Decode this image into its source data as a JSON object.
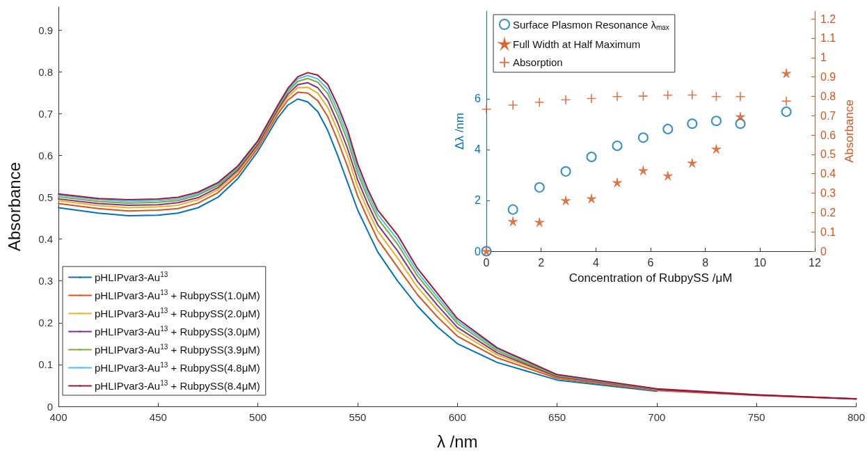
{
  "chart_data": [
    {
      "type": "line",
      "xlabel": "λ /nm",
      "ylabel": "Absorbance",
      "x": [
        400,
        420,
        435,
        450,
        460,
        470,
        480,
        490,
        500,
        510,
        515,
        520,
        525,
        530,
        535,
        540,
        545,
        550,
        555,
        560,
        570,
        580,
        590,
        600,
        620,
        650,
        700,
        750,
        800
      ],
      "series": [
        {
          "name": "pHLIPvar3-Au$^{13}$",
          "color": "#0072bd",
          "values": [
            0.475,
            0.462,
            0.456,
            0.457,
            0.462,
            0.475,
            0.5,
            0.545,
            0.61,
            0.69,
            0.72,
            0.735,
            0.728,
            0.705,
            0.66,
            0.6,
            0.535,
            0.47,
            0.42,
            0.37,
            0.3,
            0.24,
            0.19,
            0.15,
            0.105,
            0.063,
            0.036,
            null,
            null
          ]
        },
        {
          "name": "pHLIPvar3-Au$^{13}$ + RubpySS(1.0μM)",
          "color": "#d95319",
          "values": [
            0.485,
            0.473,
            0.467,
            0.469,
            0.473,
            0.486,
            0.511,
            0.554,
            0.618,
            0.699,
            0.732,
            0.751,
            0.749,
            0.731,
            0.693,
            0.636,
            0.573,
            0.503,
            0.45,
            0.4,
            0.333,
            0.267,
            0.214,
            0.168,
            0.116,
            0.067,
            0.038,
            0.026,
            0.018
          ]
        },
        {
          "name": "pHLIPvar3-Au$^{13}$ + RubpySS(2.0μM)",
          "color": "#edb120",
          "values": [
            0.492,
            0.48,
            0.475,
            0.477,
            0.481,
            0.494,
            0.518,
            0.56,
            0.623,
            0.705,
            0.74,
            0.762,
            0.763,
            0.749,
            0.715,
            0.66,
            0.598,
            0.525,
            0.47,
            0.42,
            0.355,
            0.285,
            0.23,
            0.18,
            0.123,
            0.07,
            0.039,
            0.027,
            0.018
          ]
        },
        {
          "name": "pHLIPvar3-Au$^{13}$ + RubpySS(3.0μM)",
          "color": "#7e2f8e",
          "values": [
            0.496,
            0.485,
            0.481,
            0.482,
            0.487,
            0.499,
            0.523,
            0.565,
            0.626,
            0.71,
            0.746,
            0.769,
            0.774,
            0.762,
            0.732,
            0.678,
            0.616,
            0.542,
            0.485,
            0.435,
            0.372,
            0.299,
            0.242,
            0.189,
            0.128,
            0.071,
            0.04,
            0.027,
            0.018
          ]
        },
        {
          "name": "pHLIPvar3-Au$^{13}$ + RubpySS(3.9μM)",
          "color": "#77ac30",
          "values": [
            0.501,
            0.49,
            0.486,
            0.488,
            0.492,
            0.505,
            0.528,
            0.569,
            0.63,
            0.714,
            0.752,
            0.777,
            0.784,
            0.775,
            0.748,
            0.696,
            0.635,
            0.558,
            0.5,
            0.45,
            0.388,
            0.312,
            0.254,
            0.198,
            0.133,
            0.073,
            0.041,
            null,
            null
          ]
        },
        {
          "name": "pHLIPvar3-Au$^{13}$ + RubpySS(4.8μM)",
          "color": "#4dbeee",
          "values": [
            0.505,
            0.494,
            0.49,
            0.492,
            0.496,
            0.508,
            0.532,
            0.572,
            0.633,
            0.717,
            0.756,
            0.783,
            0.791,
            0.783,
            0.759,
            0.708,
            0.648,
            0.569,
            0.51,
            0.46,
            0.399,
            0.321,
            0.262,
            0.204,
            0.137,
            0.075,
            0.041,
            null,
            null
          ]
        },
        {
          "name": "pHLIPvar3-Au$^{13}$ + RubpySS(8.4μM)",
          "color": "#a2142f",
          "values": [
            0.508,
            0.497,
            0.494,
            0.496,
            0.5,
            0.512,
            0.535,
            0.575,
            0.635,
            0.72,
            0.76,
            0.788,
            0.798,
            0.792,
            0.77,
            0.72,
            0.66,
            0.58,
            0.52,
            0.47,
            0.41,
            0.33,
            0.27,
            0.21,
            0.14,
            0.076,
            0.042,
            0.028,
            0.018
          ]
        }
      ],
      "xlim": [
        400,
        800
      ],
      "xticks": [
        400,
        450,
        500,
        550,
        600,
        650,
        700,
        750,
        800
      ],
      "ylim": [
        0,
        0.955
      ],
      "yticks": [
        0,
        0.1,
        0.2,
        0.3,
        0.4,
        0.5,
        0.6,
        0.7,
        0.8,
        0.9
      ],
      "legend": "bottom left",
      "grid": false,
      "marker": "none",
      "line_style": "solid"
    },
    {
      "type": "scatter",
      "xlabel": "Concentration of RubpySS /μM",
      "ylabel": "Δλ /nm",
      "y2label": "Absorbance",
      "x": [
        0,
        0.97,
        1.94,
        2.9,
        3.84,
        4.78,
        5.73,
        6.63,
        7.52,
        8.4,
        9.28,
        10.96
      ],
      "series": [
        {
          "name": "Surface Plasmon Resonance λ$_{max}$",
          "color": "#0072bd",
          "marker": "circle",
          "values": [
            0,
            1.64,
            2.51,
            3.14,
            3.71,
            4.15,
            4.47,
            4.81,
            5.02,
            5.13,
            5.02,
            5.49
          ]
        },
        {
          "name": "Full Width at Half Maximum",
          "color": "#d95319",
          "marker": "star",
          "axis": "y2",
          "values": [
            0,
            0.154,
            0.15,
            0.262,
            0.272,
            0.355,
            0.417,
            0.39,
            0.456,
            0.528,
            0.695,
            0.919
          ]
        },
        {
          "name": "Absorption",
          "color": "#d95319",
          "marker": "cross",
          "axis": "y2",
          "values": [
            0.733,
            0.755,
            0.769,
            0.782,
            0.789,
            0.799,
            0.801,
            0.806,
            0.807,
            0.799,
            0.799,
            0.775
          ]
        }
      ],
      "xlim": [
        0,
        12
      ],
      "xticks": [
        0,
        2,
        4,
        6,
        8,
        10,
        12
      ],
      "ylim": [
        0,
        9.45
      ],
      "yticks": [
        0,
        2,
        4,
        6
      ],
      "y2lim": [
        0,
        1.24
      ],
      "y2ticks": [
        0,
        0.1,
        0.2,
        0.3,
        0.4,
        0.5,
        0.6,
        0.7,
        0.8,
        0.9,
        1,
        1.1,
        1.2
      ],
      "legend": "top left",
      "grid": false
    }
  ]
}
